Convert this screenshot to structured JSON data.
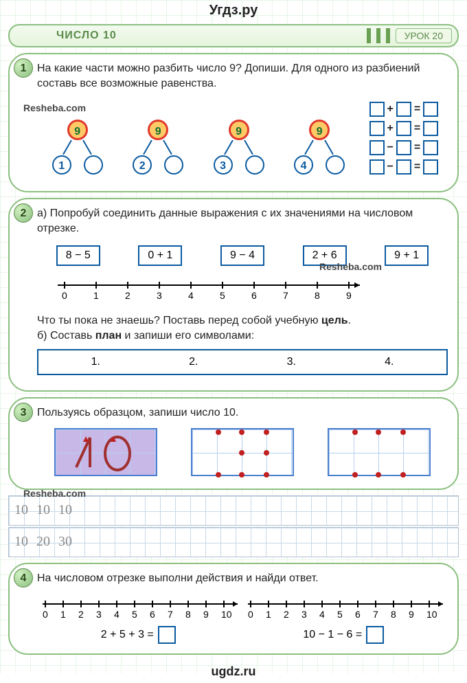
{
  "site_top": "Угдз.ру",
  "site_bottom": "ugdz.ru",
  "header": {
    "title": "ЧИСЛО 10",
    "lesson_label": "УРОК 20"
  },
  "watermarks": {
    "resheba1": "Resheba.com",
    "resheba2": "Resheba.com",
    "resheba3": "Resheba.com"
  },
  "task1": {
    "num": "1",
    "text1": "На какие части можно разбить число 9? Допиши. Для одного из разбиений составь все возможные равенства.",
    "tree_top": "9",
    "leaves": [
      "1",
      "2",
      "3",
      "4"
    ],
    "ops": [
      "+",
      "+",
      "−",
      "−"
    ]
  },
  "task2": {
    "num": "2",
    "text_a": "а) Попробуй соединить данные выражения с их значениями на числовом отрезке.",
    "exprs": [
      "8 − 5",
      "0 + 1",
      "9 − 4",
      "2 + 6",
      "9 + 1"
    ],
    "ticks": [
      "0",
      "1",
      "2",
      "3",
      "4",
      "5",
      "6",
      "7",
      "8",
      "9"
    ],
    "hint": "Что ты пока не знаешь? Поставь перед собой учебную ",
    "hint_bold": "цель",
    "text_b": "б) Составь ",
    "text_b_bold": "план",
    "text_b2": " и запиши его символами:",
    "plan": [
      "1.",
      "2.",
      "3.",
      "4."
    ]
  },
  "task3": {
    "num": "3",
    "text": "Пользуясь образцом, запиши число 10.",
    "row1": [
      "10",
      "10",
      "10"
    ],
    "row2": [
      "10",
      "20",
      "30"
    ]
  },
  "task4": {
    "num": "4",
    "text": "На числовом отрезке выполни действия и найди ответ.",
    "ticks": [
      "0",
      "1",
      "2",
      "3",
      "4",
      "5",
      "6",
      "7",
      "8",
      "9",
      "10"
    ],
    "eq1": "2 + 5 + 3 =",
    "eq2": "10 − 1 − 6 ="
  },
  "colors": {
    "green_border": "#8bbf7f",
    "blue": "#0a5aa0",
    "orange": "#ffc966",
    "red": "#e0392b"
  }
}
